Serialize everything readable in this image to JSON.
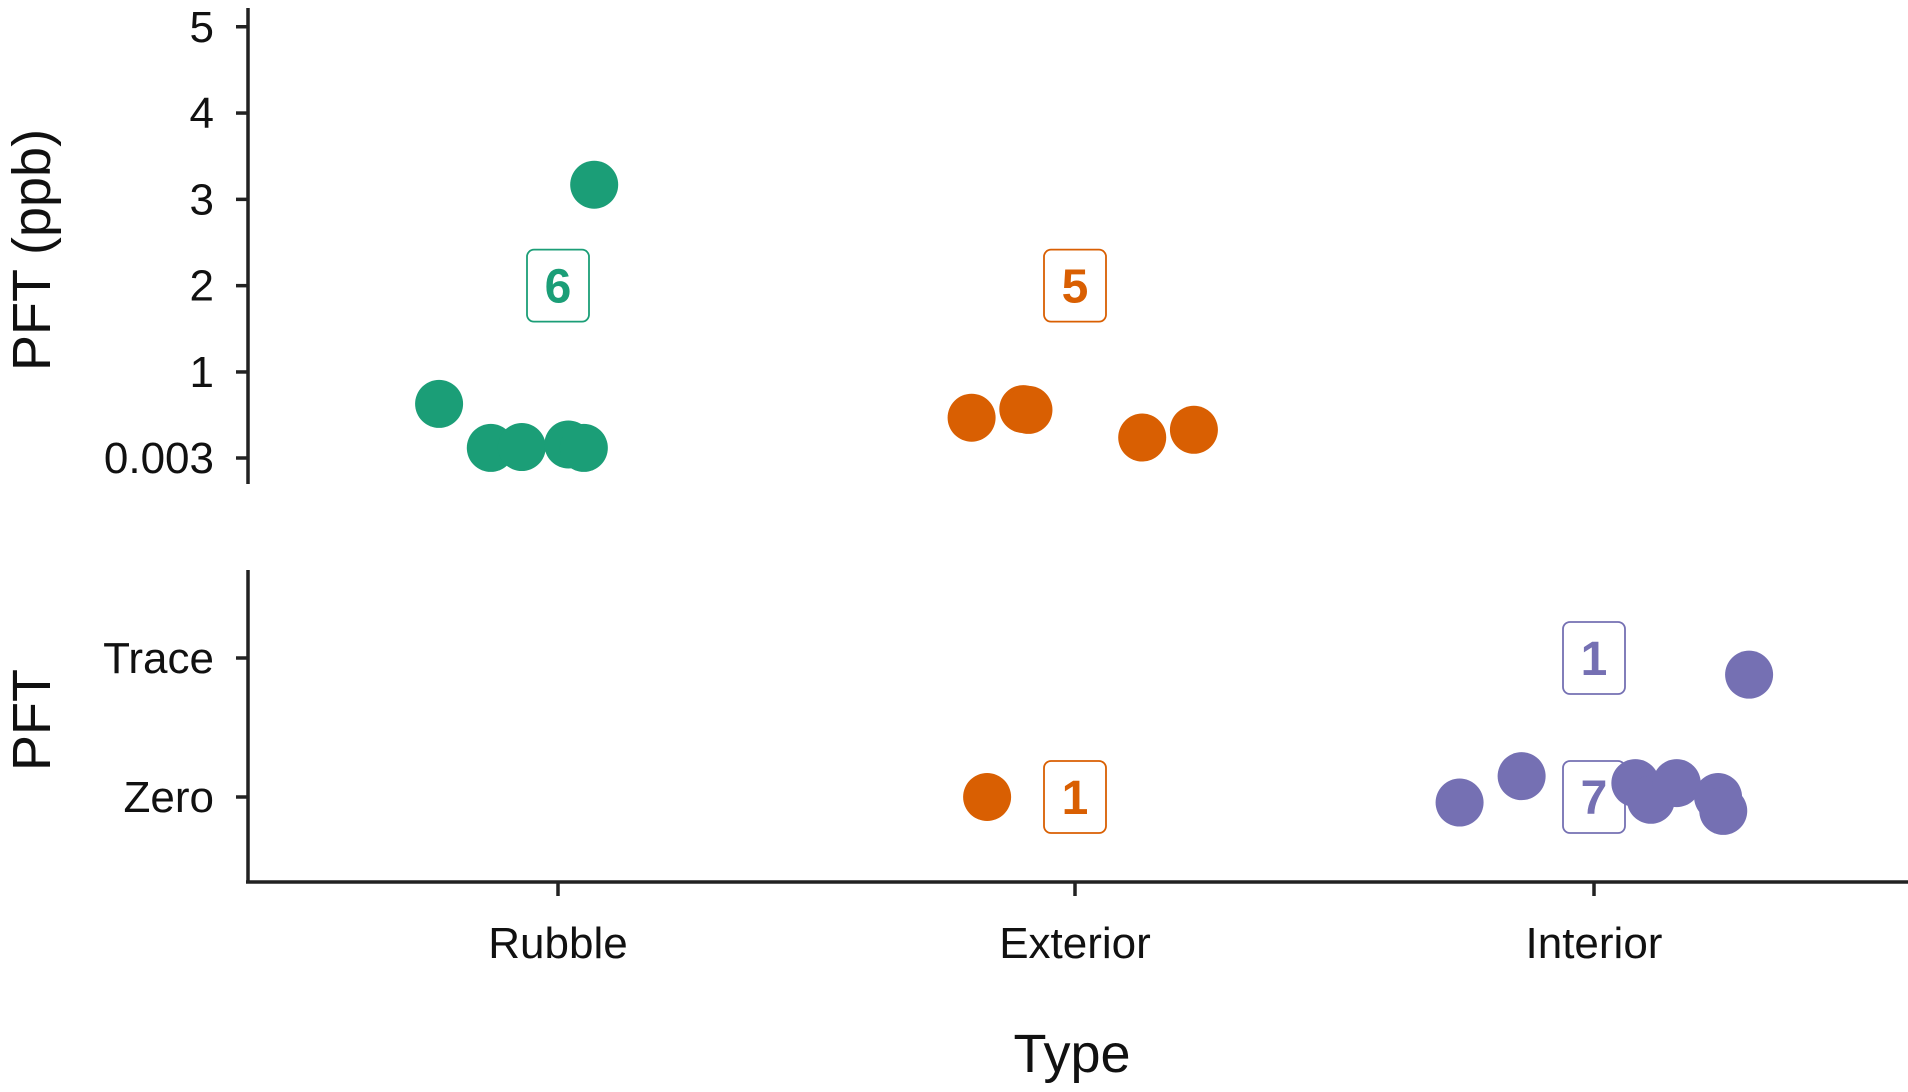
{
  "chart_data": [
    {
      "type": "scatter",
      "panel": "top",
      "ylabel": "PFT (ppb)",
      "categories": [
        "Rubble",
        "Exterior",
        "Interior"
      ],
      "y_ticks": [
        {
          "value": 0.003,
          "label": "0.003"
        },
        {
          "value": 1,
          "label": "1"
        },
        {
          "value": 2,
          "label": "2"
        },
        {
          "value": 3,
          "label": "3"
        },
        {
          "value": 4,
          "label": "4"
        },
        {
          "value": 5,
          "label": "5"
        }
      ],
      "ylim": [
        -0.25,
        5.2
      ],
      "grid": false,
      "series": [
        {
          "category": "Rubble",
          "color": "#1b9e77",
          "count_label": "6",
          "count_y": 2.0,
          "points": [
            {
              "x_offset": -0.23,
              "y": 0.63
            },
            {
              "x_offset": -0.13,
              "y": 0.12
            },
            {
              "x_offset": -0.07,
              "y": 0.13
            },
            {
              "x_offset": 0.02,
              "y": 0.16
            },
            {
              "x_offset": 0.05,
              "y": 0.12
            },
            {
              "x_offset": 0.07,
              "y": 3.17
            }
          ]
        },
        {
          "category": "Exterior",
          "color": "#d95f02",
          "count_label": "5",
          "count_y": 2.0,
          "points": [
            {
              "x_offset": -0.2,
              "y": 0.47
            },
            {
              "x_offset": -0.1,
              "y": 0.57
            },
            {
              "x_offset": -0.09,
              "y": 0.56
            },
            {
              "x_offset": 0.13,
              "y": 0.24
            },
            {
              "x_offset": 0.23,
              "y": 0.33
            }
          ]
        }
      ]
    },
    {
      "type": "scatter",
      "panel": "bottom",
      "ylabel": "PFT",
      "xlabel": "Type",
      "categories": [
        "Rubble",
        "Exterior",
        "Interior"
      ],
      "y_categories": [
        "Zero",
        "Trace"
      ],
      "grid": false,
      "series": [
        {
          "category": "Exterior",
          "color": "#d95f02",
          "counts": [
            {
              "level": "Zero",
              "label": "1"
            }
          ],
          "points": [
            {
              "x_offset": -0.17,
              "level": "Zero",
              "jitter": 0.0
            }
          ]
        },
        {
          "category": "Interior",
          "color": "#7570b3",
          "counts": [
            {
              "level": "Trace",
              "label": "1"
            },
            {
              "level": "Zero",
              "label": "7"
            }
          ],
          "points": [
            {
              "x_offset": 0.3,
              "level": "Trace",
              "jitter": -0.12
            },
            {
              "x_offset": -0.26,
              "level": "Zero",
              "jitter": -0.04
            },
            {
              "x_offset": -0.14,
              "level": "Zero",
              "jitter": 0.15
            },
            {
              "x_offset": 0.08,
              "level": "Zero",
              "jitter": 0.1
            },
            {
              "x_offset": 0.11,
              "level": "Zero",
              "jitter": -0.02
            },
            {
              "x_offset": 0.16,
              "level": "Zero",
              "jitter": 0.1
            },
            {
              "x_offset": 0.24,
              "level": "Zero",
              "jitter": 0.0
            },
            {
              "x_offset": 0.25,
              "level": "Zero",
              "jitter": -0.1
            }
          ]
        }
      ]
    }
  ]
}
